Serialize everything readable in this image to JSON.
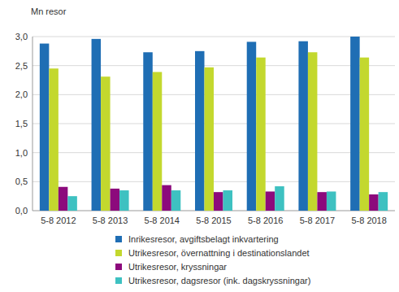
{
  "chart_data": {
    "type": "bar",
    "y_label": "Mn resor",
    "categories": [
      "5-8 2012",
      "5-8 2013",
      "5-8 2014",
      "5-8 2015",
      "5-8 2016",
      "5-8 2017",
      "5-8 2018"
    ],
    "series": [
      {
        "name": "Inrikesresor, avgiftsbelagt inkvartering",
        "color": "#1f6eb4",
        "values": [
          2.88,
          2.96,
          2.73,
          2.75,
          2.91,
          2.92,
          3.0
        ]
      },
      {
        "name": "Utrikesresor, övernattning i destinationslandet",
        "color": "#c3d82e",
        "values": [
          2.45,
          2.31,
          2.39,
          2.47,
          2.64,
          2.73,
          2.64
        ]
      },
      {
        "name": "Utrikesresor, kryssningar",
        "color": "#8c0a7c",
        "values": [
          0.41,
          0.38,
          0.44,
          0.32,
          0.33,
          0.32,
          0.28
        ]
      },
      {
        "name": "Utrikesresor, dagsresor (ink. dagskryssningar)",
        "color": "#3ec1c1",
        "values": [
          0.25,
          0.35,
          0.35,
          0.35,
          0.42,
          0.33,
          0.32
        ]
      }
    ],
    "ylim": [
      0,
      3
    ],
    "yticks": [
      {
        "value": 0,
        "label": "0,0"
      },
      {
        "value": 0.5,
        "label": "0,5"
      },
      {
        "value": 1,
        "label": "1,0"
      },
      {
        "value": 1.5,
        "label": "1,5"
      },
      {
        "value": 2,
        "label": "2,0"
      },
      {
        "value": 2.5,
        "label": "2,5"
      },
      {
        "value": 3,
        "label": "3,0"
      }
    ],
    "grid": true,
    "legend": "bottom"
  }
}
